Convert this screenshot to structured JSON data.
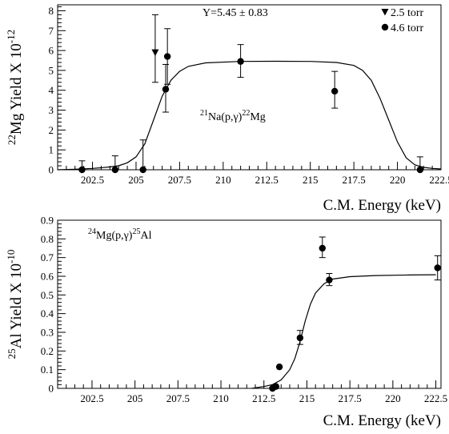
{
  "chart_data": [
    {
      "type": "scatter",
      "xlabel": "C.M. Energy (keV)",
      "ylabel": {
        "sup": "22",
        "main": "Mg Yield X 10",
        "exp": "-12"
      },
      "xlim": [
        200.5,
        222.5
      ],
      "ylim": [
        0,
        8.3
      ],
      "x_ticks": [
        "202.5",
        "205",
        "207.5",
        "210",
        "212.5",
        "215",
        "217.5",
        "220",
        "222.5"
      ],
      "x_tick_values": [
        202.5,
        205,
        207.5,
        210,
        212.5,
        215,
        217.5,
        220,
        222.5
      ],
      "y_ticks": [
        "0",
        "1",
        "2",
        "3",
        "4",
        "5",
        "6",
        "7",
        "8"
      ],
      "y_tick_values": [
        0,
        1,
        2,
        3,
        4,
        5,
        6,
        7,
        8
      ],
      "annotation_fit": "Y=5.45 ± 0.83",
      "reaction": {
        "a": "21",
        "b": "Na(p,γ)",
        "c": "22",
        "d": "Mg"
      },
      "legend_position": "top-right",
      "series": [
        {
          "name": "2.5 torr",
          "marker": "triangle-down",
          "points": [
            {
              "x": 206.1,
              "y": 5.9,
              "lo": 4.4,
              "hi": 7.8
            }
          ]
        },
        {
          "name": "4.6 torr",
          "marker": "circle",
          "points": [
            {
              "x": 201.9,
              "y": 0.0,
              "lo": 0.0,
              "hi": 0.45
            },
            {
              "x": 203.8,
              "y": 0.0,
              "lo": 0.0,
              "hi": 0.7
            },
            {
              "x": 205.4,
              "y": 0.0,
              "lo": 0.0,
              "hi": 1.5
            },
            {
              "x": 206.7,
              "y": 4.05,
              "lo": 2.9,
              "hi": 5.3
            },
            {
              "x": 206.8,
              "y": 5.7,
              "lo": 4.3,
              "hi": 7.1
            },
            {
              "x": 211.0,
              "y": 5.45,
              "lo": 4.65,
              "hi": 6.3
            },
            {
              "x": 216.4,
              "y": 3.95,
              "lo": 3.1,
              "hi": 4.95
            },
            {
              "x": 221.3,
              "y": 0.0,
              "lo": 0.0,
              "hi": 0.65
            }
          ]
        }
      ],
      "fit_curve": [
        [
          200.5,
          0.0
        ],
        [
          201.5,
          0.03
        ],
        [
          202.5,
          0.07
        ],
        [
          203.0,
          0.1
        ],
        [
          203.5,
          0.14
        ],
        [
          204.0,
          0.2
        ],
        [
          204.5,
          0.35
        ],
        [
          205.0,
          0.65
        ],
        [
          205.5,
          1.3
        ],
        [
          206.0,
          2.5
        ],
        [
          206.5,
          3.7
        ],
        [
          207.0,
          4.5
        ],
        [
          207.5,
          4.95
        ],
        [
          208.0,
          5.2
        ],
        [
          209.0,
          5.38
        ],
        [
          211.0,
          5.45
        ],
        [
          213.0,
          5.46
        ],
        [
          215.0,
          5.45
        ],
        [
          216.5,
          5.4
        ],
        [
          217.5,
          5.25
        ],
        [
          218.0,
          5.0
        ],
        [
          218.5,
          4.5
        ],
        [
          219.0,
          3.6
        ],
        [
          219.5,
          2.5
        ],
        [
          220.0,
          1.4
        ],
        [
          220.5,
          0.6
        ],
        [
          221.0,
          0.25
        ],
        [
          221.5,
          0.12
        ],
        [
          222.0,
          0.07
        ],
        [
          222.5,
          0.04
        ]
      ]
    },
    {
      "type": "scatter",
      "xlabel": "C.M. Energy (keV)",
      "ylabel": {
        "sup": "25",
        "main": "Al Yield X 10",
        "exp": "-10"
      },
      "xlim": [
        200.5,
        222.8
      ],
      "ylim": [
        0,
        0.9
      ],
      "x_ticks": [
        "202.5",
        "205",
        "207.5",
        "210",
        "212.5",
        "215",
        "217.5",
        "220",
        "222.5"
      ],
      "x_tick_values": [
        202.5,
        205,
        207.5,
        210,
        212.5,
        215,
        217.5,
        220,
        222.5
      ],
      "y_ticks": [
        "0",
        "0.1",
        "0.2",
        "0.3",
        "0.4",
        "0.5",
        "0.6",
        "0.7",
        "0.8",
        "0.9"
      ],
      "y_tick_values": [
        0,
        0.1,
        0.2,
        0.3,
        0.4,
        0.5,
        0.6,
        0.7,
        0.8,
        0.9
      ],
      "reaction": {
        "a": "24",
        "b": "Mg(p,γ)",
        "c": "25",
        "d": "Al"
      },
      "series": [
        {
          "marker": "circle",
          "points": [
            {
              "x": 213.0,
              "y": 0.0,
              "lo": null,
              "hi": null
            },
            {
              "x": 213.2,
              "y": 0.01,
              "lo": null,
              "hi": null
            },
            {
              "x": 213.4,
              "y": 0.115,
              "lo": null,
              "hi": null
            },
            {
              "x": 214.6,
              "y": 0.27,
              "lo": 0.235,
              "hi": 0.31
            },
            {
              "x": 215.9,
              "y": 0.75,
              "lo": 0.7,
              "hi": 0.81
            },
            {
              "x": 216.3,
              "y": 0.58,
              "lo": 0.55,
              "hi": 0.615
            },
            {
              "x": 222.6,
              "y": 0.645,
              "lo": 0.58,
              "hi": 0.71
            }
          ]
        }
      ],
      "fit_curve": [
        [
          211.8,
          0.0
        ],
        [
          212.5,
          0.01
        ],
        [
          213.0,
          0.02
        ],
        [
          213.5,
          0.045
        ],
        [
          214.0,
          0.1
        ],
        [
          214.3,
          0.16
        ],
        [
          214.6,
          0.25
        ],
        [
          214.9,
          0.36
        ],
        [
          215.2,
          0.45
        ],
        [
          215.5,
          0.51
        ],
        [
          216.0,
          0.56
        ],
        [
          216.5,
          0.585
        ],
        [
          217.5,
          0.598
        ],
        [
          219.0,
          0.604
        ],
        [
          221.0,
          0.607
        ],
        [
          222.5,
          0.608
        ]
      ]
    }
  ]
}
